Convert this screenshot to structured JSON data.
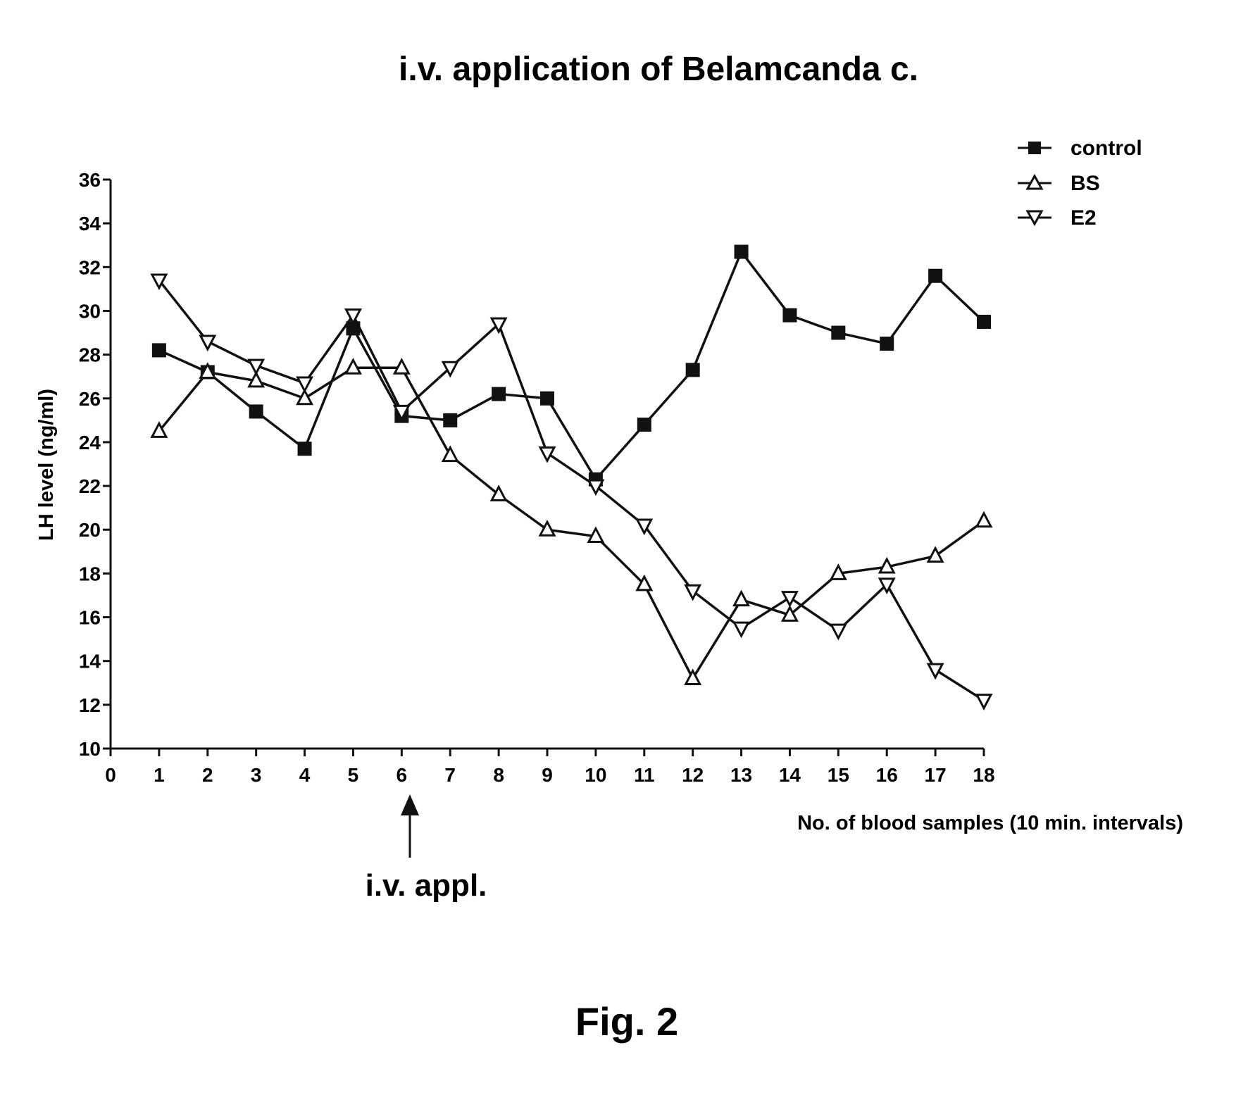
{
  "chart_data": {
    "type": "line",
    "title": "i.v. application of Belamcanda c.",
    "xlabel": "No. of blood samples (10 min. intervals)",
    "ylabel": "LH level (ng/ml)",
    "xlim": [
      0,
      18
    ],
    "ylim": [
      10,
      36
    ],
    "x_ticks": [
      0,
      1,
      2,
      3,
      4,
      5,
      6,
      7,
      8,
      9,
      10,
      11,
      12,
      13,
      14,
      15,
      16,
      17,
      18
    ],
    "y_ticks": [
      10,
      12,
      14,
      16,
      18,
      20,
      22,
      24,
      26,
      28,
      30,
      32,
      34,
      36
    ],
    "grid": false,
    "legend_position": "top-right",
    "x": [
      1,
      2,
      3,
      4,
      5,
      6,
      7,
      8,
      9,
      10,
      11,
      12,
      13,
      14,
      15,
      16,
      17,
      18
    ],
    "series": [
      {
        "name": "control",
        "marker": "square",
        "values": [
          28.2,
          27.2,
          25.4,
          23.7,
          29.2,
          25.2,
          25.0,
          26.2,
          26.0,
          22.3,
          24.8,
          27.3,
          32.7,
          29.8,
          29.0,
          28.5,
          31.6,
          29.5
        ]
      },
      {
        "name": "BS",
        "marker": "triangle-up",
        "values": [
          24.5,
          27.2,
          26.8,
          26.0,
          27.4,
          27.4,
          23.4,
          21.6,
          20.0,
          19.7,
          17.5,
          13.2,
          16.8,
          16.1,
          18.0,
          18.3,
          18.8,
          20.4
        ]
      },
      {
        "name": "E2",
        "marker": "triangle-down",
        "values": [
          31.4,
          28.6,
          27.5,
          26.7,
          29.8,
          25.4,
          27.4,
          29.4,
          23.5,
          22.0,
          20.2,
          17.2,
          15.5,
          16.9,
          15.4,
          17.5,
          13.6,
          12.2
        ]
      }
    ],
    "annotations": [
      {
        "text": "i.v. appl.",
        "x": 6,
        "arrow": "up"
      }
    ]
  },
  "caption": "Fig. 2"
}
